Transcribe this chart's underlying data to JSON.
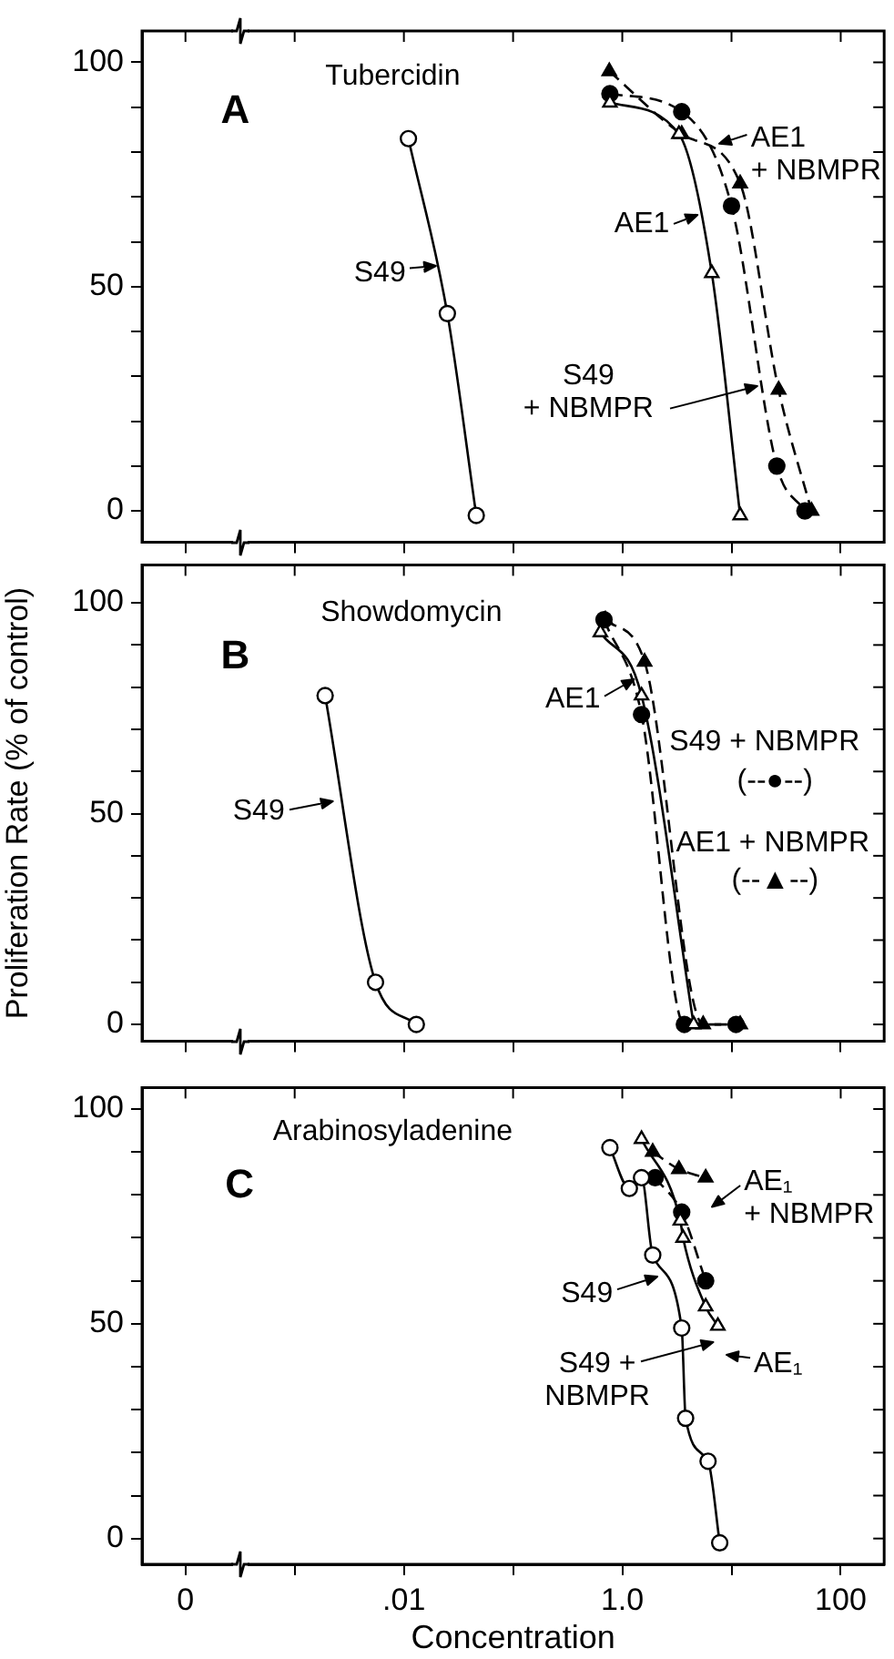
{
  "chart_data": [
    {
      "type": "line",
      "title": "Tubercidin",
      "annotations": [
        "A",
        {
          "text": "S49",
          "x": 0.0195,
          "y": 54.5
        },
        {
          "text": "AE1",
          "x": 4.8,
          "y": 66
        },
        {
          "text": "AE1\n+ NBMPR",
          "x": 7.8,
          "y": 82
        },
        {
          "text": "S49\n+ NBMPR",
          "x": 17,
          "y": 28
        }
      ],
      "series": [
        {
          "color": "#000000",
          "marker": "circle",
          "line_style": "solid",
          "x": [
            0.011,
            0.025,
            0.046
          ],
          "values": [
            83,
            44,
            -1
          ]
        },
        {
          "color": "#000000",
          "marker": "triangle",
          "line_style": "solid",
          "x": [
            0.77,
            3.3,
            6.6,
            12
          ],
          "values": [
            91,
            84,
            53,
            -1
          ]
        },
        {
          "color": "#000000",
          "marker": "circle",
          "line_style": "dashed",
          "x": [
            0.77,
            3.5,
            10,
            26,
            47
          ],
          "values": [
            93,
            89,
            68,
            10,
            0
          ]
        },
        {
          "color": "#000000",
          "marker": "triangle",
          "line_style": "dashed",
          "x": [
            0.76,
            3.5,
            12,
            27,
            54
          ],
          "values": [
            98,
            84,
            73,
            27,
            0
          ]
        }
      ],
      "xlim": [
        4e-05,
        250
      ],
      "xticks": [
        {
          "value": 0.0001,
          "label": null
        },
        {
          "value": 0.001,
          "label": null
        },
        {
          "value": 0.01,
          "label": null
        },
        {
          "value": 0.1,
          "label": null
        },
        {
          "value": 1,
          "label": null
        },
        {
          "value": 10,
          "label": null
        },
        {
          "value": 100,
          "label": null
        }
      ],
      "ylim": [
        -7,
        107
      ],
      "yticks": [
        0,
        {
          "value": 10,
          "label": null
        },
        {
          "value": 20,
          "label": null
        },
        {
          "value": 30,
          "label": null
        },
        {
          "value": 40,
          "label": null
        },
        50,
        {
          "value": 60,
          "label": null
        },
        {
          "value": 70,
          "label": null
        },
        {
          "value": 80,
          "label": null
        },
        {
          "value": 90,
          "label": null
        },
        100
      ],
      "log": "x",
      "grid": false,
      "legend": false,
      "tick_labels": "y"
    },
    {
      "type": "line",
      "title": "Showdomycin",
      "ylabel": "Proliferation Rate (% of control)",
      "annotations": [
        "B",
        {
          "text": "S49",
          "x": 0.0022,
          "y": 53
        },
        {
          "text": "AE1",
          "x": 1.27,
          "y": 82
        },
        "S49 + NBMPR",
        "(--●--)",
        "AE1 + NBMPR",
        "(--▲--)"
      ],
      "series": [
        {
          "color": "#000000",
          "marker": "circle",
          "line_style": "solid",
          "x": [
            0.0019,
            0.0055,
            0.013
          ],
          "values": [
            78,
            10,
            0
          ]
        },
        {
          "color": "#000000",
          "marker": "triangle",
          "line_style": "solid",
          "x": [
            0.63,
            1.5,
            4.5
          ],
          "values": [
            93,
            78,
            0
          ]
        },
        {
          "color": "#000000",
          "marker": "circle",
          "line_style": "dashed",
          "x": [
            0.68,
            1.5,
            3.7,
            11
          ],
          "values": [
            96,
            73.5,
            0,
            0
          ]
        },
        {
          "color": "#000000",
          "marker": "triangle",
          "line_style": "dashed",
          "x": [
            0.7,
            1.6,
            5.5,
            12
          ],
          "values": [
            96,
            86,
            0,
            0
          ]
        }
      ],
      "xlim": [
        4e-05,
        250
      ],
      "xticks": [
        {
          "value": 0.0001,
          "label": null
        },
        {
          "value": 0.001,
          "label": null
        },
        {
          "value": 0.01,
          "label": null
        },
        {
          "value": 0.1,
          "label": null
        },
        {
          "value": 1,
          "label": null
        },
        {
          "value": 10,
          "label": null
        },
        {
          "value": 100,
          "label": null
        }
      ],
      "ylim": [
        -4,
        109
      ],
      "yticks": [
        0,
        {
          "value": 10,
          "label": null
        },
        {
          "value": 20,
          "label": null
        },
        {
          "value": 30,
          "label": null
        },
        {
          "value": 40,
          "label": null
        },
        50,
        {
          "value": 60,
          "label": null
        },
        {
          "value": 70,
          "label": null
        },
        {
          "value": 80,
          "label": null
        },
        {
          "value": 90,
          "label": null
        },
        100
      ],
      "log": "x",
      "grid": false,
      "legend": false,
      "tick_labels": "y"
    },
    {
      "type": "line",
      "title": "Arabinosyladenine",
      "xlabel": "Concentration",
      "annotations": [
        "C",
        {
          "text": "S49",
          "x": 2.1,
          "y": 61
        },
        "S49 +\nNBMPR",
        "AE₁\n+ NBMPR",
        "AE₁"
      ],
      "series": [
        {
          "color": "#000000",
          "marker": "circle",
          "line_style": "solid",
          "x": [
            0.77,
            1.16,
            1.5,
            1.9,
            3.5,
            3.8,
            6.1,
            7.8
          ],
          "values": [
            91,
            81.5,
            84,
            66,
            49,
            28,
            18,
            -1
          ]
        },
        {
          "color": "#000000",
          "marker": "triangle",
          "line_style": "solid",
          "x": [
            1.5,
            3.4,
            3.6,
            5.8,
            7.5
          ],
          "values": [
            93,
            74,
            70,
            54,
            49.5
          ]
        },
        {
          "color": "#000000",
          "marker": "circle",
          "line_style": "dashed",
          "x": [
            2.0,
            3.5,
            5.8
          ],
          "values": [
            84,
            76,
            60
          ]
        },
        {
          "color": "#000000",
          "marker": "triangle",
          "line_style": "dashed",
          "x": [
            1.9,
            3.3,
            5.8
          ],
          "values": [
            90,
            86,
            84
          ]
        }
      ],
      "xlim": [
        4e-05,
        250
      ],
      "xticks": [
        {
          "value": 0.0001,
          "label": "0"
        },
        {
          "value": 0.001,
          "label": null
        },
        {
          "value": 0.01,
          "label": ".01"
        },
        {
          "value": 0.1,
          "label": null
        },
        {
          "value": 1,
          "label": "1.0"
        },
        {
          "value": 10,
          "label": null
        },
        100
      ],
      "ylim": [
        -6,
        105
      ],
      "yticks": [
        0,
        {
          "value": 10,
          "label": null
        },
        {
          "value": 20,
          "label": null
        },
        {
          "value": 30,
          "label": null
        },
        {
          "value": 40,
          "label": null
        },
        50,
        {
          "value": 60,
          "label": null
        },
        {
          "value": 70,
          "label": null
        },
        {
          "value": 80,
          "label": null
        },
        {
          "value": 90,
          "label": null
        },
        100
      ],
      "log": "x",
      "grid": false,
      "legend": false
    }
  ]
}
